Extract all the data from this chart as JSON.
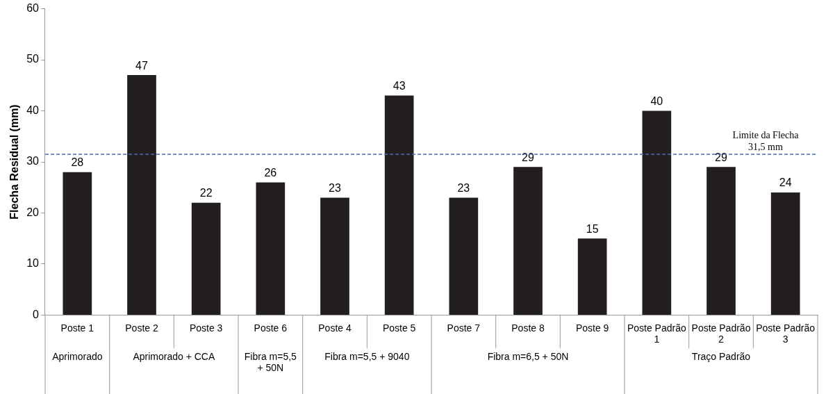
{
  "chart_data": {
    "type": "bar",
    "ylabel": "Flecha Residual (mm)",
    "categories": [
      "Poste 1",
      "Poste 2",
      "Poste 3",
      "Poste 6",
      "Poste 4",
      "Poste 5",
      "Poste 7",
      "Poste 8",
      "Poste 9",
      "Poste Padrão 1",
      "Poste Padrão 2",
      "Poste Padrão 3"
    ],
    "values": [
      28,
      47,
      22,
      26,
      23,
      43,
      23,
      29,
      15,
      40,
      29,
      24
    ],
    "color": "#231f20",
    "ylim": [
      0,
      60
    ],
    "yticks": [
      0,
      10,
      20,
      30,
      40,
      50,
      60
    ],
    "grid": false,
    "legend": false,
    "data_labels": true,
    "ref_lines": [
      {
        "axis": "y",
        "value": 31.5,
        "label": "Limite da Flecha\n31,5 mm",
        "color": "#4472c4",
        "line_style": "dashed"
      }
    ],
    "annotations": [
      "Aprimorado",
      "Aprimorado + CCA",
      "Fibra m=5,5 + 50N",
      "Fibra m=5,5 + 9040",
      "Fibra m=6,5 + 50N",
      "Traço Padrão"
    ]
  }
}
